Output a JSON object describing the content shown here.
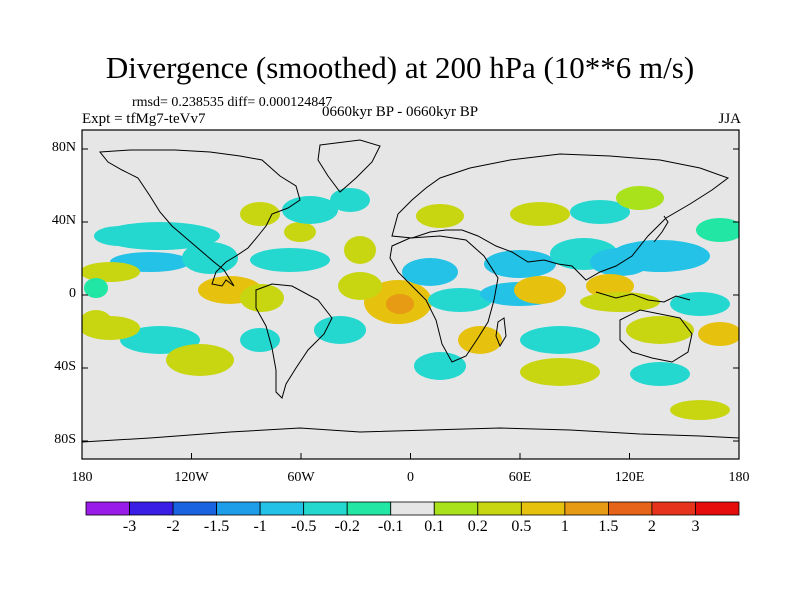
{
  "title": "Divergence (smoothed) at 200 hPa (10**6 m/s)",
  "stats": "rmsd= 0.238535 diff= 0.000124847",
  "experiment": "Expt = tfMg7-teVv7",
  "period": "0660kyr BP - 0660kyr BP",
  "season": "JJA",
  "axes": {
    "y_ticks": [
      "80N",
      "40N",
      "0",
      "40S",
      "80S"
    ],
    "x_ticks": [
      "180",
      "120W",
      "60W",
      "0",
      "60E",
      "120E",
      "180"
    ]
  },
  "colorbar": {
    "labels": [
      "-3",
      "-2",
      "-1.5",
      "-1",
      "-0.5",
      "-0.2",
      "-0.1",
      "0.1",
      "0.2",
      "0.5",
      "1",
      "1.5",
      "2",
      "3"
    ],
    "colors": [
      "#9a1ce8",
      "#3a1ee6",
      "#1a63e0",
      "#1e9ee8",
      "#23c2e6",
      "#24d8d0",
      "#22e6a3",
      "#e6e6e6",
      "#a9e21a",
      "#c8d612",
      "#e6c20f",
      "#e79a14",
      "#e6641a",
      "#e6341c",
      "#e60c0c"
    ]
  },
  "map_colors": {
    "background": "#e6e6e6",
    "pos_light": "#a9e21a",
    "pos_mid": "#c8d612",
    "pos_strong": "#e6c20f",
    "pos_max": "#e79a14",
    "neg_light": "#22e6a3",
    "neg_mid": "#24d8d0",
    "neg_strong": "#23c2e6",
    "neg_max": "#1e9ee8"
  }
}
